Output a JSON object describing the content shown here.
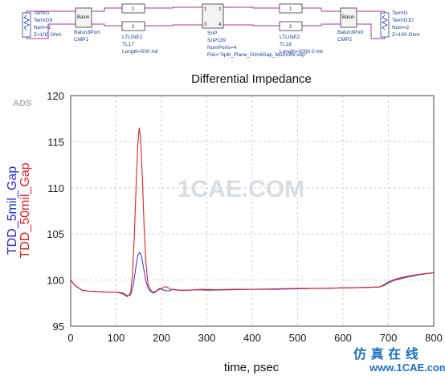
{
  "schematic": {
    "term_left": [
      "TermG",
      "TermG9",
      "Num=1",
      "Z=100 Ohm"
    ],
    "balun_left": [
      "Balun3Port",
      "CMP1"
    ],
    "tline_left": [
      "LTLINE2",
      "TL17",
      "Length=500 mil"
    ],
    "snp": [
      "SnP",
      "SnP139",
      "NumPorts=4",
      "File=\"Split_Plane_50milGap_MomUW.s4p\""
    ],
    "tline_right": [
      "LTLINE2",
      "TL18",
      "Length=2000.0 mil"
    ],
    "balun_right": [
      "Balun3Port",
      "CMP2"
    ],
    "term_right": [
      "TermG",
      "TermG10",
      "Num=2",
      "Z=100 Ohm"
    ],
    "balun_box_label": "Balun",
    "port_labels": [
      "1",
      "2",
      "1",
      "2",
      "1",
      "2",
      "3",
      "4"
    ],
    "wire_color": "#b0309a"
  },
  "chart_data": {
    "type": "line",
    "title": "Differential Impedance",
    "xlabel": "time, psec",
    "ylabel_series": [
      "TDD_5mil_Gap",
      "TDD_50mil_Gap"
    ],
    "xlim": [
      0,
      800
    ],
    "ylim": [
      95,
      120
    ],
    "xticks": [
      0,
      100,
      200,
      300,
      400,
      500,
      600,
      700,
      800
    ],
    "yticks": [
      95,
      100,
      105,
      110,
      115,
      120
    ],
    "grid": true,
    "series": [
      {
        "name": "TDD_5mil_Gap",
        "color": "#3f3fd0",
        "points": [
          [
            0,
            100
          ],
          [
            10,
            99.4
          ],
          [
            25,
            98.9
          ],
          [
            40,
            98.8
          ],
          [
            60,
            98.75
          ],
          [
            80,
            98.7
          ],
          [
            100,
            98.7
          ],
          [
            115,
            98.6
          ],
          [
            125,
            98.3
          ],
          [
            132,
            98.4
          ],
          [
            138,
            99.5
          ],
          [
            143,
            101.2
          ],
          [
            148,
            102.7
          ],
          [
            152,
            103.0
          ],
          [
            156,
            102.6
          ],
          [
            161,
            101.2
          ],
          [
            166,
            99.8
          ],
          [
            172,
            99.0
          ],
          [
            180,
            98.6
          ],
          [
            188,
            98.8
          ],
          [
            196,
            99.1
          ],
          [
            205,
            98.9
          ],
          [
            215,
            98.8
          ],
          [
            225,
            99.0
          ],
          [
            240,
            98.9
          ],
          [
            260,
            98.9
          ],
          [
            280,
            98.95
          ],
          [
            300,
            98.9
          ],
          [
            350,
            98.95
          ],
          [
            400,
            99.0
          ],
          [
            450,
            99.0
          ],
          [
            500,
            99.05
          ],
          [
            550,
            99.1
          ],
          [
            600,
            99.15
          ],
          [
            650,
            99.2
          ],
          [
            680,
            99.25
          ],
          [
            690,
            99.4
          ],
          [
            700,
            99.7
          ],
          [
            715,
            100.0
          ],
          [
            740,
            100.3
          ],
          [
            770,
            100.6
          ],
          [
            800,
            100.8
          ]
        ]
      },
      {
        "name": "TDD_50mil_Gap",
        "color": "#e02222",
        "points": [
          [
            0,
            100
          ],
          [
            10,
            99.4
          ],
          [
            25,
            98.9
          ],
          [
            40,
            98.8
          ],
          [
            60,
            98.75
          ],
          [
            80,
            98.7
          ],
          [
            100,
            98.7
          ],
          [
            115,
            98.5
          ],
          [
            125,
            98.2
          ],
          [
            132,
            98.6
          ],
          [
            136,
            100.5
          ],
          [
            140,
            104.5
          ],
          [
            144,
            110.0
          ],
          [
            148,
            114.8
          ],
          [
            151,
            116.5
          ],
          [
            154,
            115.5
          ],
          [
            158,
            111.0
          ],
          [
            162,
            105.5
          ],
          [
            166,
            101.8
          ],
          [
            170,
            99.6
          ],
          [
            176,
            98.9
          ],
          [
            184,
            98.6
          ],
          [
            192,
            98.9
          ],
          [
            200,
            99.1
          ],
          [
            210,
            99.3
          ],
          [
            220,
            99.0
          ],
          [
            235,
            98.9
          ],
          [
            260,
            98.9
          ],
          [
            290,
            99.0
          ],
          [
            320,
            98.95
          ],
          [
            360,
            99.0
          ],
          [
            400,
            99.0
          ],
          [
            450,
            99.05
          ],
          [
            500,
            99.1
          ],
          [
            550,
            99.1
          ],
          [
            600,
            99.15
          ],
          [
            650,
            99.2
          ],
          [
            680,
            99.25
          ],
          [
            690,
            99.5
          ],
          [
            700,
            99.8
          ],
          [
            715,
            100.1
          ],
          [
            740,
            100.4
          ],
          [
            770,
            100.65
          ],
          [
            800,
            100.8
          ]
        ]
      }
    ]
  },
  "corner_label": "ADS",
  "watermark": "1CAE.COM",
  "logo": {
    "chars": "仿 真 在 线",
    "url": "www.1CAE.com"
  }
}
